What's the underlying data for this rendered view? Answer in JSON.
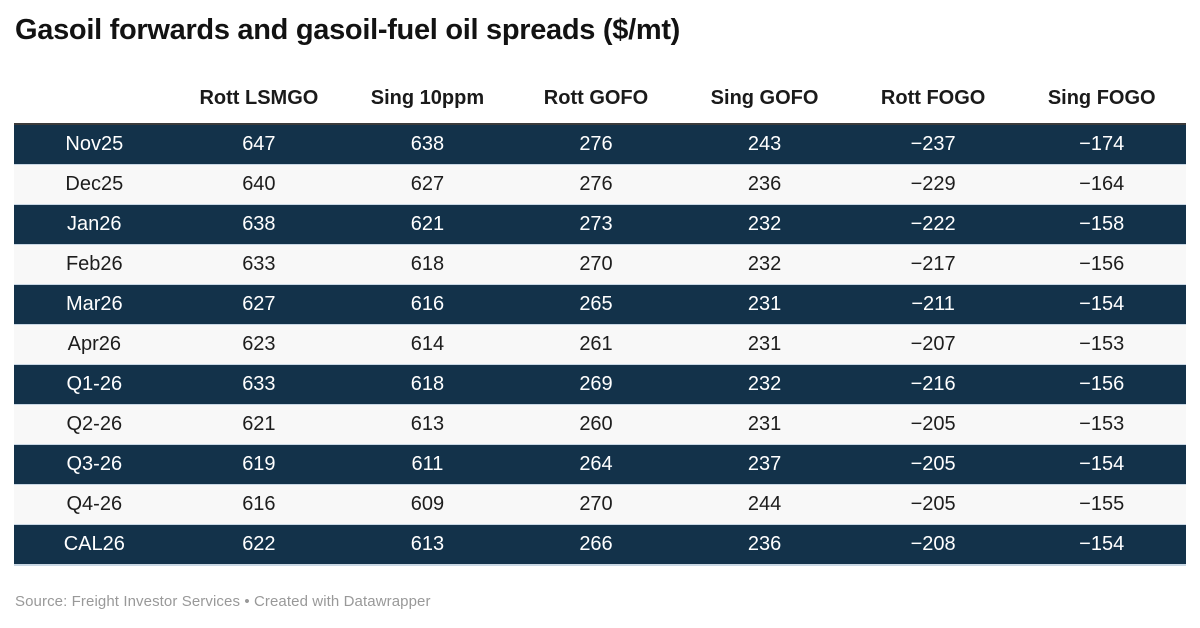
{
  "title": "Gasoil forwards and gasoil-fuel oil spreads ($/mt)",
  "footer": {
    "text": "Source: Freight Investor Services • Created with Datawrapper"
  },
  "colors": {
    "dark_row_bg": "#13324a",
    "dark_row_text": "#ffffff",
    "light_row_bg": "#f8f8f8",
    "light_row_text": "#1d1d1d",
    "header_text": "#1a1a1a",
    "title_text": "#121212",
    "footer_text": "#999999",
    "tbody_top_border": "#3b3b3b",
    "row_divider": "#c9d7e4"
  },
  "chart_data": {
    "type": "table",
    "title": "Gasoil forwards and gasoil-fuel oil spreads ($/mt)",
    "columns": [
      "Rott LSMGO",
      "Sing 10ppm",
      "Rott GOFO",
      "Sing GOFO",
      "Rott FOGO",
      "Sing FOGO"
    ],
    "rows": [
      {
        "label": "Nov25",
        "values": [
          647,
          638,
          276,
          243,
          -237,
          -174
        ]
      },
      {
        "label": "Dec25",
        "values": [
          640,
          627,
          276,
          236,
          -229,
          -164
        ]
      },
      {
        "label": "Jan26",
        "values": [
          638,
          621,
          273,
          232,
          -222,
          -158
        ]
      },
      {
        "label": "Feb26",
        "values": [
          633,
          618,
          270,
          232,
          -217,
          -156
        ]
      },
      {
        "label": "Mar26",
        "values": [
          627,
          616,
          265,
          231,
          -211,
          -154
        ]
      },
      {
        "label": "Apr26",
        "values": [
          623,
          614,
          261,
          231,
          -207,
          -153
        ]
      },
      {
        "label": "Q1-26",
        "values": [
          633,
          618,
          269,
          232,
          -216,
          -156
        ]
      },
      {
        "label": "Q2-26",
        "values": [
          621,
          613,
          260,
          231,
          -205,
          -153
        ]
      },
      {
        "label": "Q3-26",
        "values": [
          619,
          611,
          264,
          237,
          -205,
          -154
        ]
      },
      {
        "label": "Q4-26",
        "values": [
          616,
          609,
          270,
          244,
          -205,
          -155
        ]
      },
      {
        "label": "CAL26",
        "values": [
          622,
          613,
          266,
          236,
          -208,
          -154
        ]
      }
    ],
    "source": "Freight Investor Services",
    "attribution": "Created with Datawrapper",
    "layout": {
      "striping": "alternating rows starting dark",
      "alignment": "center",
      "legend_position": "none"
    }
  }
}
